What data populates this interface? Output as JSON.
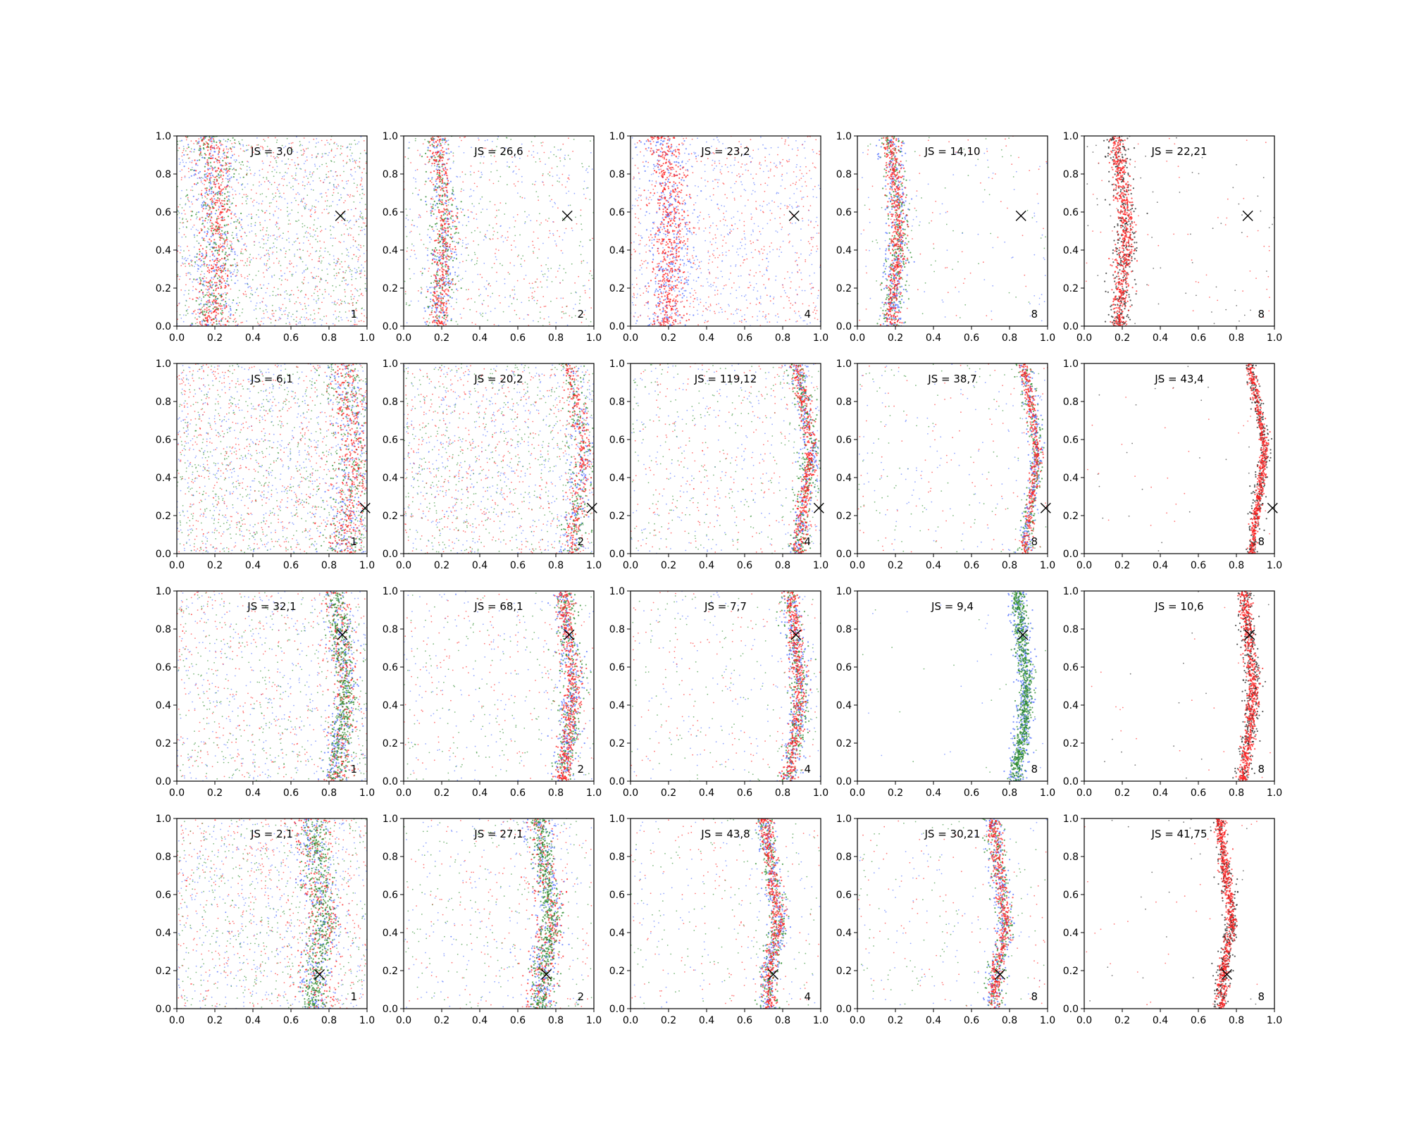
{
  "chart_data": {
    "type": "scatter",
    "layout": {
      "rows": 4,
      "cols": 5
    },
    "xlim": [
      0.0,
      1.0
    ],
    "ylim": [
      0.0,
      1.0
    ],
    "ticks": [
      "0.0",
      "0.2",
      "0.4",
      "0.6",
      "0.8",
      "1.0"
    ],
    "grid": false,
    "legend": "none",
    "colors": {
      "blue": "#4f6fff",
      "green": "#2a8a2a",
      "red": "#ff1f1f",
      "black": "#222222",
      "frame": "#000000"
    },
    "rows": [
      {
        "marker": [
          0.86,
          0.58
        ],
        "curve": [
          [
            0.0,
            0.18
          ],
          [
            0.25,
            0.2
          ],
          [
            0.55,
            0.22
          ],
          [
            0.75,
            0.2
          ],
          [
            1.0,
            0.17
          ]
        ],
        "panels": [
          {
            "js": "JS = 3,0",
            "n": "1",
            "series": [
              "blue",
              "green",
              "red"
            ],
            "band_width": 0.05,
            "band": 0.35,
            "density": 2.0
          },
          {
            "js": "JS = 26,6",
            "n": "2",
            "series": [
              "blue",
              "green",
              "red"
            ],
            "band_width": 0.03,
            "band": 0.55,
            "density": 1.2
          },
          {
            "js": "JS = 23,2",
            "n": "4",
            "series": [
              "blue",
              "red"
            ],
            "band_width": 0.05,
            "band": 0.45,
            "density": 1.4
          },
          {
            "js": "JS = 14,10",
            "n": "8",
            "series": [
              "green",
              "blue",
              "red"
            ],
            "band_width": 0.025,
            "band": 0.85,
            "density": 1.0
          },
          {
            "js": "JS = 22,21",
            "n": "8",
            "series": [
              "black",
              "red"
            ],
            "band_width": 0.025,
            "band": 0.9,
            "density": 0.8
          }
        ]
      },
      {
        "marker": [
          0.99,
          0.24
        ],
        "curve": [
          [
            0.0,
            0.88
          ],
          [
            0.25,
            0.91
          ],
          [
            0.55,
            0.95
          ],
          [
            0.8,
            0.91
          ],
          [
            1.0,
            0.87
          ]
        ],
        "panels": [
          {
            "js": "JS = 6,1",
            "n": "1",
            "series": [
              "blue",
              "green",
              "red"
            ],
            "band_width": 0.05,
            "band": 0.3,
            "density": 2.0
          },
          {
            "js": "JS = 20,2",
            "n": "2",
            "series": [
              "blue",
              "green",
              "red"
            ],
            "band_width": 0.025,
            "band": 0.3,
            "density": 1.6
          },
          {
            "js": "JS = 119,12",
            "n": "4",
            "series": [
              "blue",
              "green",
              "red"
            ],
            "band_width": 0.02,
            "band": 0.6,
            "density": 1.3
          },
          {
            "js": "JS = 38,7",
            "n": "8",
            "series": [
              "green",
              "blue",
              "red"
            ],
            "band_width": 0.015,
            "band": 0.75,
            "density": 0.9
          },
          {
            "js": "JS = 43,4",
            "n": "8",
            "series": [
              "black",
              "red"
            ],
            "band_width": 0.012,
            "band": 0.95,
            "density": 0.7
          }
        ]
      },
      {
        "marker": [
          0.87,
          0.77
        ],
        "curve": [
          [
            0.0,
            0.83
          ],
          [
            0.25,
            0.87
          ],
          [
            0.5,
            0.89
          ],
          [
            0.78,
            0.86
          ],
          [
            1.0,
            0.84
          ]
        ],
        "panels": [
          {
            "js": "JS = 32,1",
            "n": "1",
            "series": [
              "blue",
              "red",
              "green"
            ],
            "band_width": 0.03,
            "band": 0.5,
            "density": 1.6
          },
          {
            "js": "JS = 68,1",
            "n": "2",
            "series": [
              "green",
              "blue",
              "red"
            ],
            "band_width": 0.025,
            "band": 0.7,
            "density": 1.2
          },
          {
            "js": "JS = 7,7",
            "n": "4",
            "series": [
              "green",
              "blue",
              "red"
            ],
            "band_width": 0.02,
            "band": 0.75,
            "density": 1.1
          },
          {
            "js": "JS = 9,4",
            "n": "8",
            "series": [
              "blue",
              "green"
            ],
            "band_width": 0.02,
            "band": 0.97,
            "density": 0.9
          },
          {
            "js": "JS = 10,6",
            "n": "8",
            "series": [
              "black",
              "red"
            ],
            "band_width": 0.018,
            "band": 0.97,
            "density": 0.8
          }
        ]
      },
      {
        "marker": [
          0.75,
          0.18
        ],
        "curve": [
          [
            0.0,
            0.72
          ],
          [
            0.2,
            0.73
          ],
          [
            0.45,
            0.78
          ],
          [
            0.75,
            0.74
          ],
          [
            1.0,
            0.71
          ]
        ],
        "panels": [
          {
            "js": "JS = 2,1",
            "n": "1",
            "series": [
              "blue",
              "red",
              "green"
            ],
            "band_width": 0.04,
            "band": 0.45,
            "density": 1.8
          },
          {
            "js": "JS = 27,1",
            "n": "2",
            "series": [
              "blue",
              "red",
              "green"
            ],
            "band_width": 0.03,
            "band": 0.7,
            "density": 1.3
          },
          {
            "js": "JS = 43,8",
            "n": "4",
            "series": [
              "green",
              "blue",
              "red"
            ],
            "band_width": 0.02,
            "band": 0.75,
            "density": 1.1
          },
          {
            "js": "JS = 30,21",
            "n": "8",
            "series": [
              "green",
              "blue",
              "red"
            ],
            "band_width": 0.02,
            "band": 0.8,
            "density": 1.0
          },
          {
            "js": "JS = 41,75",
            "n": "8",
            "series": [
              "black",
              "red"
            ],
            "band_width": 0.015,
            "band": 0.95,
            "density": 0.8
          }
        ]
      }
    ]
  }
}
